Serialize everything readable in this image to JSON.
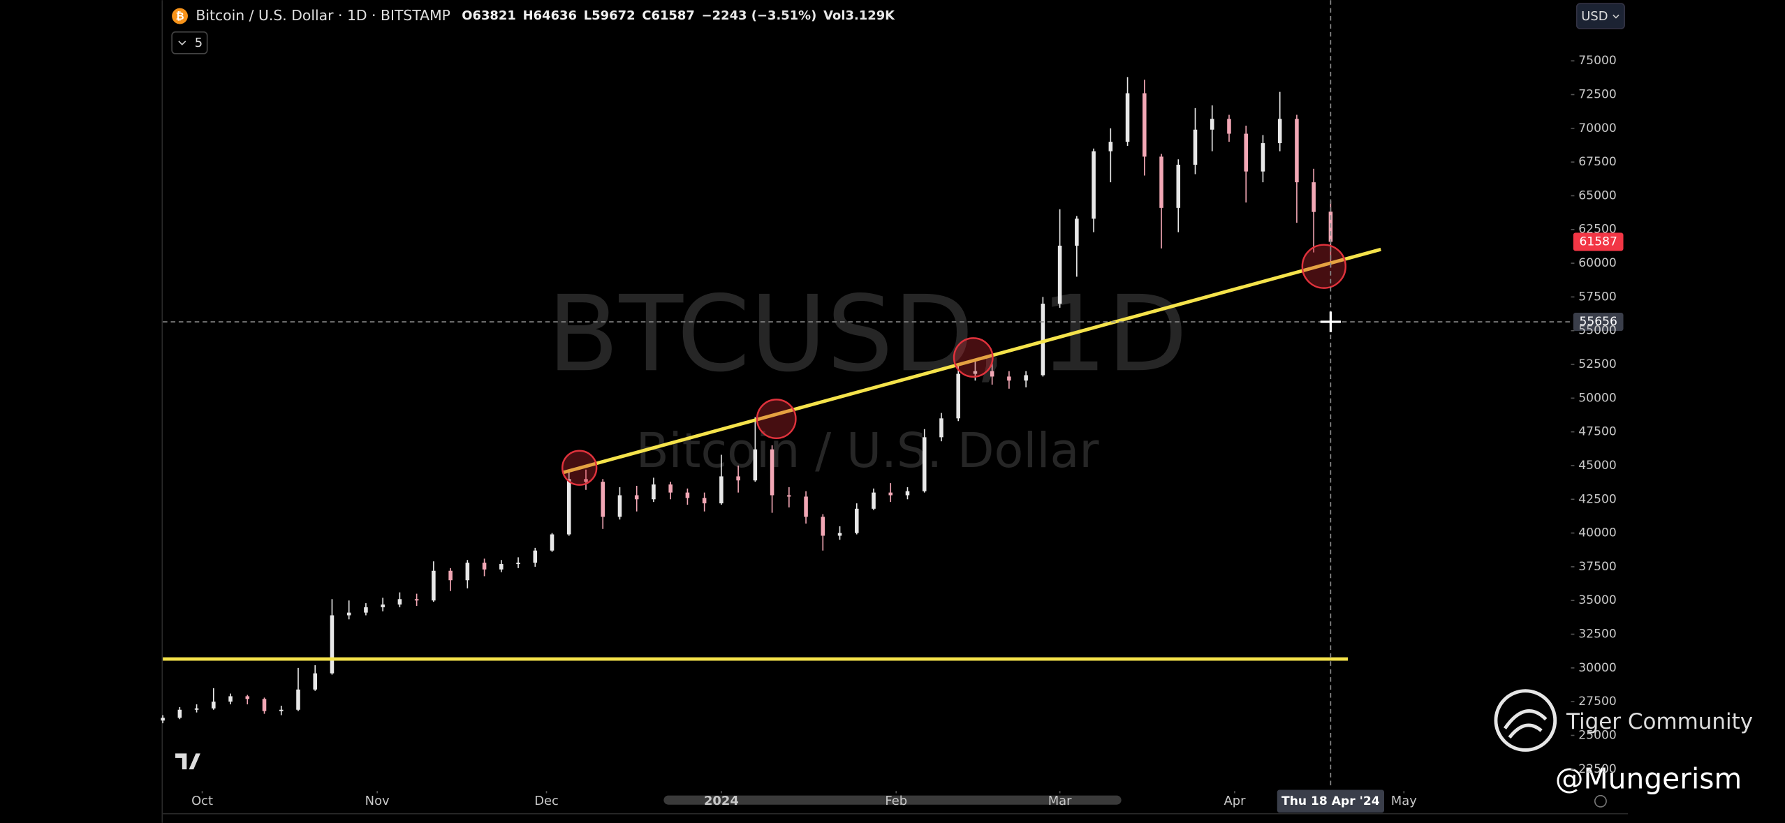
{
  "chart_data": {
    "type": "candlestick",
    "header": {
      "icon": "₿",
      "title": "Bitcoin / U.S. Dollar · 1D · BITSTAMP",
      "ohlc": [
        "O63821",
        "H64636",
        "L59672",
        "C61587",
        "−2243 (−3.51%)",
        "Vol3.129K"
      ],
      "indicators": "5",
      "currency": "USD"
    },
    "watermark": [
      "BTCUSD, 1D",
      "Bitcoin / U.S. Dollar"
    ],
    "candles": [
      [
        26100,
        26500,
        25900,
        26300
      ],
      [
        26300,
        27100,
        26200,
        26900
      ],
      [
        26900,
        27300,
        26700,
        27000
      ],
      [
        27000,
        28500,
        26900,
        27500
      ],
      [
        27500,
        28100,
        27300,
        27900
      ],
      [
        27900,
        28000,
        27300,
        27700
      ],
      [
        27700,
        27800,
        26600,
        26800
      ],
      [
        26800,
        27200,
        26500,
        26900
      ],
      [
        26900,
        30000,
        26800,
        28400
      ],
      [
        28400,
        30200,
        28300,
        29600
      ],
      [
        29600,
        35100,
        29500,
        33900
      ],
      [
        33900,
        35000,
        33600,
        34100
      ],
      [
        34100,
        34800,
        33900,
        34500
      ],
      [
        34500,
        35200,
        34200,
        34700
      ],
      [
        34700,
        35600,
        34500,
        35100
      ],
      [
        35100,
        35500,
        34600,
        35000
      ],
      [
        35000,
        37900,
        34900,
        37200
      ],
      [
        37200,
        37400,
        35700,
        36500
      ],
      [
        36500,
        38000,
        35900,
        37800
      ],
      [
        37800,
        38100,
        36800,
        37300
      ],
      [
        37300,
        38000,
        37100,
        37700
      ],
      [
        37700,
        38200,
        37400,
        37800
      ],
      [
        37800,
        38900,
        37500,
        38700
      ],
      [
        38700,
        40000,
        38600,
        39900
      ],
      [
        39900,
        44500,
        39800,
        44000
      ],
      [
        44000,
        44700,
        43200,
        43800
      ],
      [
        43800,
        44000,
        40300,
        41200
      ],
      [
        41200,
        43400,
        41000,
        42800
      ],
      [
        42800,
        43500,
        41600,
        42500
      ],
      [
        42500,
        44100,
        42300,
        43600
      ],
      [
        43600,
        43800,
        42500,
        43000
      ],
      [
        43000,
        43300,
        42100,
        42600
      ],
      [
        42600,
        43000,
        41600,
        42200
      ],
      [
        42200,
        45800,
        42100,
        44200
      ],
      [
        44200,
        45000,
        43000,
        43900
      ],
      [
        43900,
        48600,
        43800,
        46200
      ],
      [
        46200,
        46500,
        41500,
        42800
      ],
      [
        42800,
        43400,
        41900,
        42700
      ],
      [
        42700,
        43100,
        40700,
        41200
      ],
      [
        41200,
        41400,
        38700,
        39800
      ],
      [
        39800,
        40500,
        39500,
        40000
      ],
      [
        40000,
        42200,
        39900,
        41800
      ],
      [
        41800,
        43300,
        41700,
        43000
      ],
      [
        43000,
        43700,
        42300,
        42800
      ],
      [
        42800,
        43400,
        42500,
        43100
      ],
      [
        43100,
        47700,
        43000,
        47100
      ],
      [
        47100,
        48900,
        46800,
        48500
      ],
      [
        48500,
        52500,
        48300,
        51800
      ],
      [
        51800,
        52800,
        51300,
        52000
      ],
      [
        52000,
        52600,
        51000,
        51600
      ],
      [
        51600,
        52000,
        50700,
        51300
      ],
      [
        51300,
        52000,
        50800,
        51700
      ],
      [
        51700,
        57500,
        51600,
        57000
      ],
      [
        57000,
        64000,
        56700,
        61300
      ],
      [
        61300,
        63500,
        59000,
        63300
      ],
      [
        63300,
        68500,
        62300,
        68300
      ],
      [
        68300,
        70000,
        66000,
        69000
      ],
      [
        69000,
        73800,
        68700,
        72600
      ],
      [
        72600,
        73600,
        66500,
        67900
      ],
      [
        67900,
        68100,
        61100,
        64100
      ],
      [
        64100,
        67700,
        62300,
        67300
      ],
      [
        67300,
        71500,
        66600,
        69900
      ],
      [
        69900,
        71700,
        68300,
        70700
      ],
      [
        70700,
        71000,
        69000,
        69600
      ],
      [
        69600,
        70200,
        64500,
        66800
      ],
      [
        66800,
        69500,
        66000,
        68900
      ],
      [
        68900,
        72700,
        68300,
        70700
      ],
      [
        70700,
        71000,
        63000,
        66000
      ],
      [
        66000,
        67000,
        60800,
        63800
      ],
      [
        63821,
        64636,
        59672,
        61587
      ]
    ],
    "up_color": "#e8e8e8",
    "down_color": "#f2a7b5",
    "xlim": [
      0,
      83.2
    ],
    "xticks": [
      {
        "value": 2.33,
        "label": "Oct"
      },
      {
        "value": 12.67,
        "label": "Nov"
      },
      {
        "value": 22.67,
        "label": "Dec"
      },
      {
        "value": 33,
        "label": "2024"
      },
      {
        "value": 43.33,
        "label": "Feb"
      },
      {
        "value": 53,
        "label": "Mar"
      },
      {
        "value": 63.33,
        "label": "Apr"
      },
      {
        "value": 73.33,
        "label": "May"
      }
    ],
    "ylim": [
      21300,
      79500
    ],
    "yticks": [
      22500,
      25000,
      27500,
      30000,
      32500,
      35000,
      37500,
      40000,
      42500,
      45000,
      47500,
      50000,
      52500,
      55000,
      57500,
      60000,
      62500,
      65000,
      67500,
      70000,
      72500,
      75000
    ],
    "crosshair": {
      "index": 69,
      "x_label": "Thu 18 Apr '24",
      "price": 55656
    },
    "branding": [
      "Tiger Community",
      "@Mungerism"
    ]
  }
}
